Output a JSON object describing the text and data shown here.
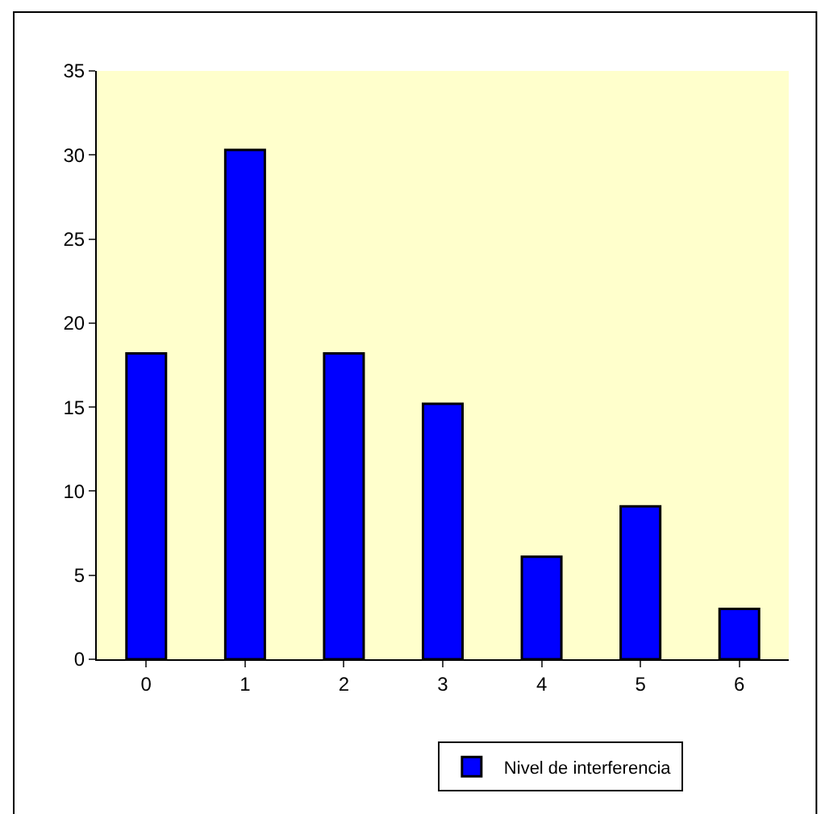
{
  "chart_data": {
    "type": "bar",
    "categories": [
      "0",
      "1",
      "2",
      "3",
      "4",
      "5",
      "6"
    ],
    "series": [
      {
        "name": "Nivel de interferencia",
        "color": "#0000ff",
        "values": [
          18.2,
          30.3,
          18.2,
          15.2,
          6.1,
          9.1,
          3.0
        ]
      }
    ],
    "ylim": [
      0,
      35
    ],
    "yticks": [
      0,
      5,
      10,
      15,
      20,
      25,
      30,
      35
    ],
    "grid": false,
    "legend": "bottom"
  }
}
